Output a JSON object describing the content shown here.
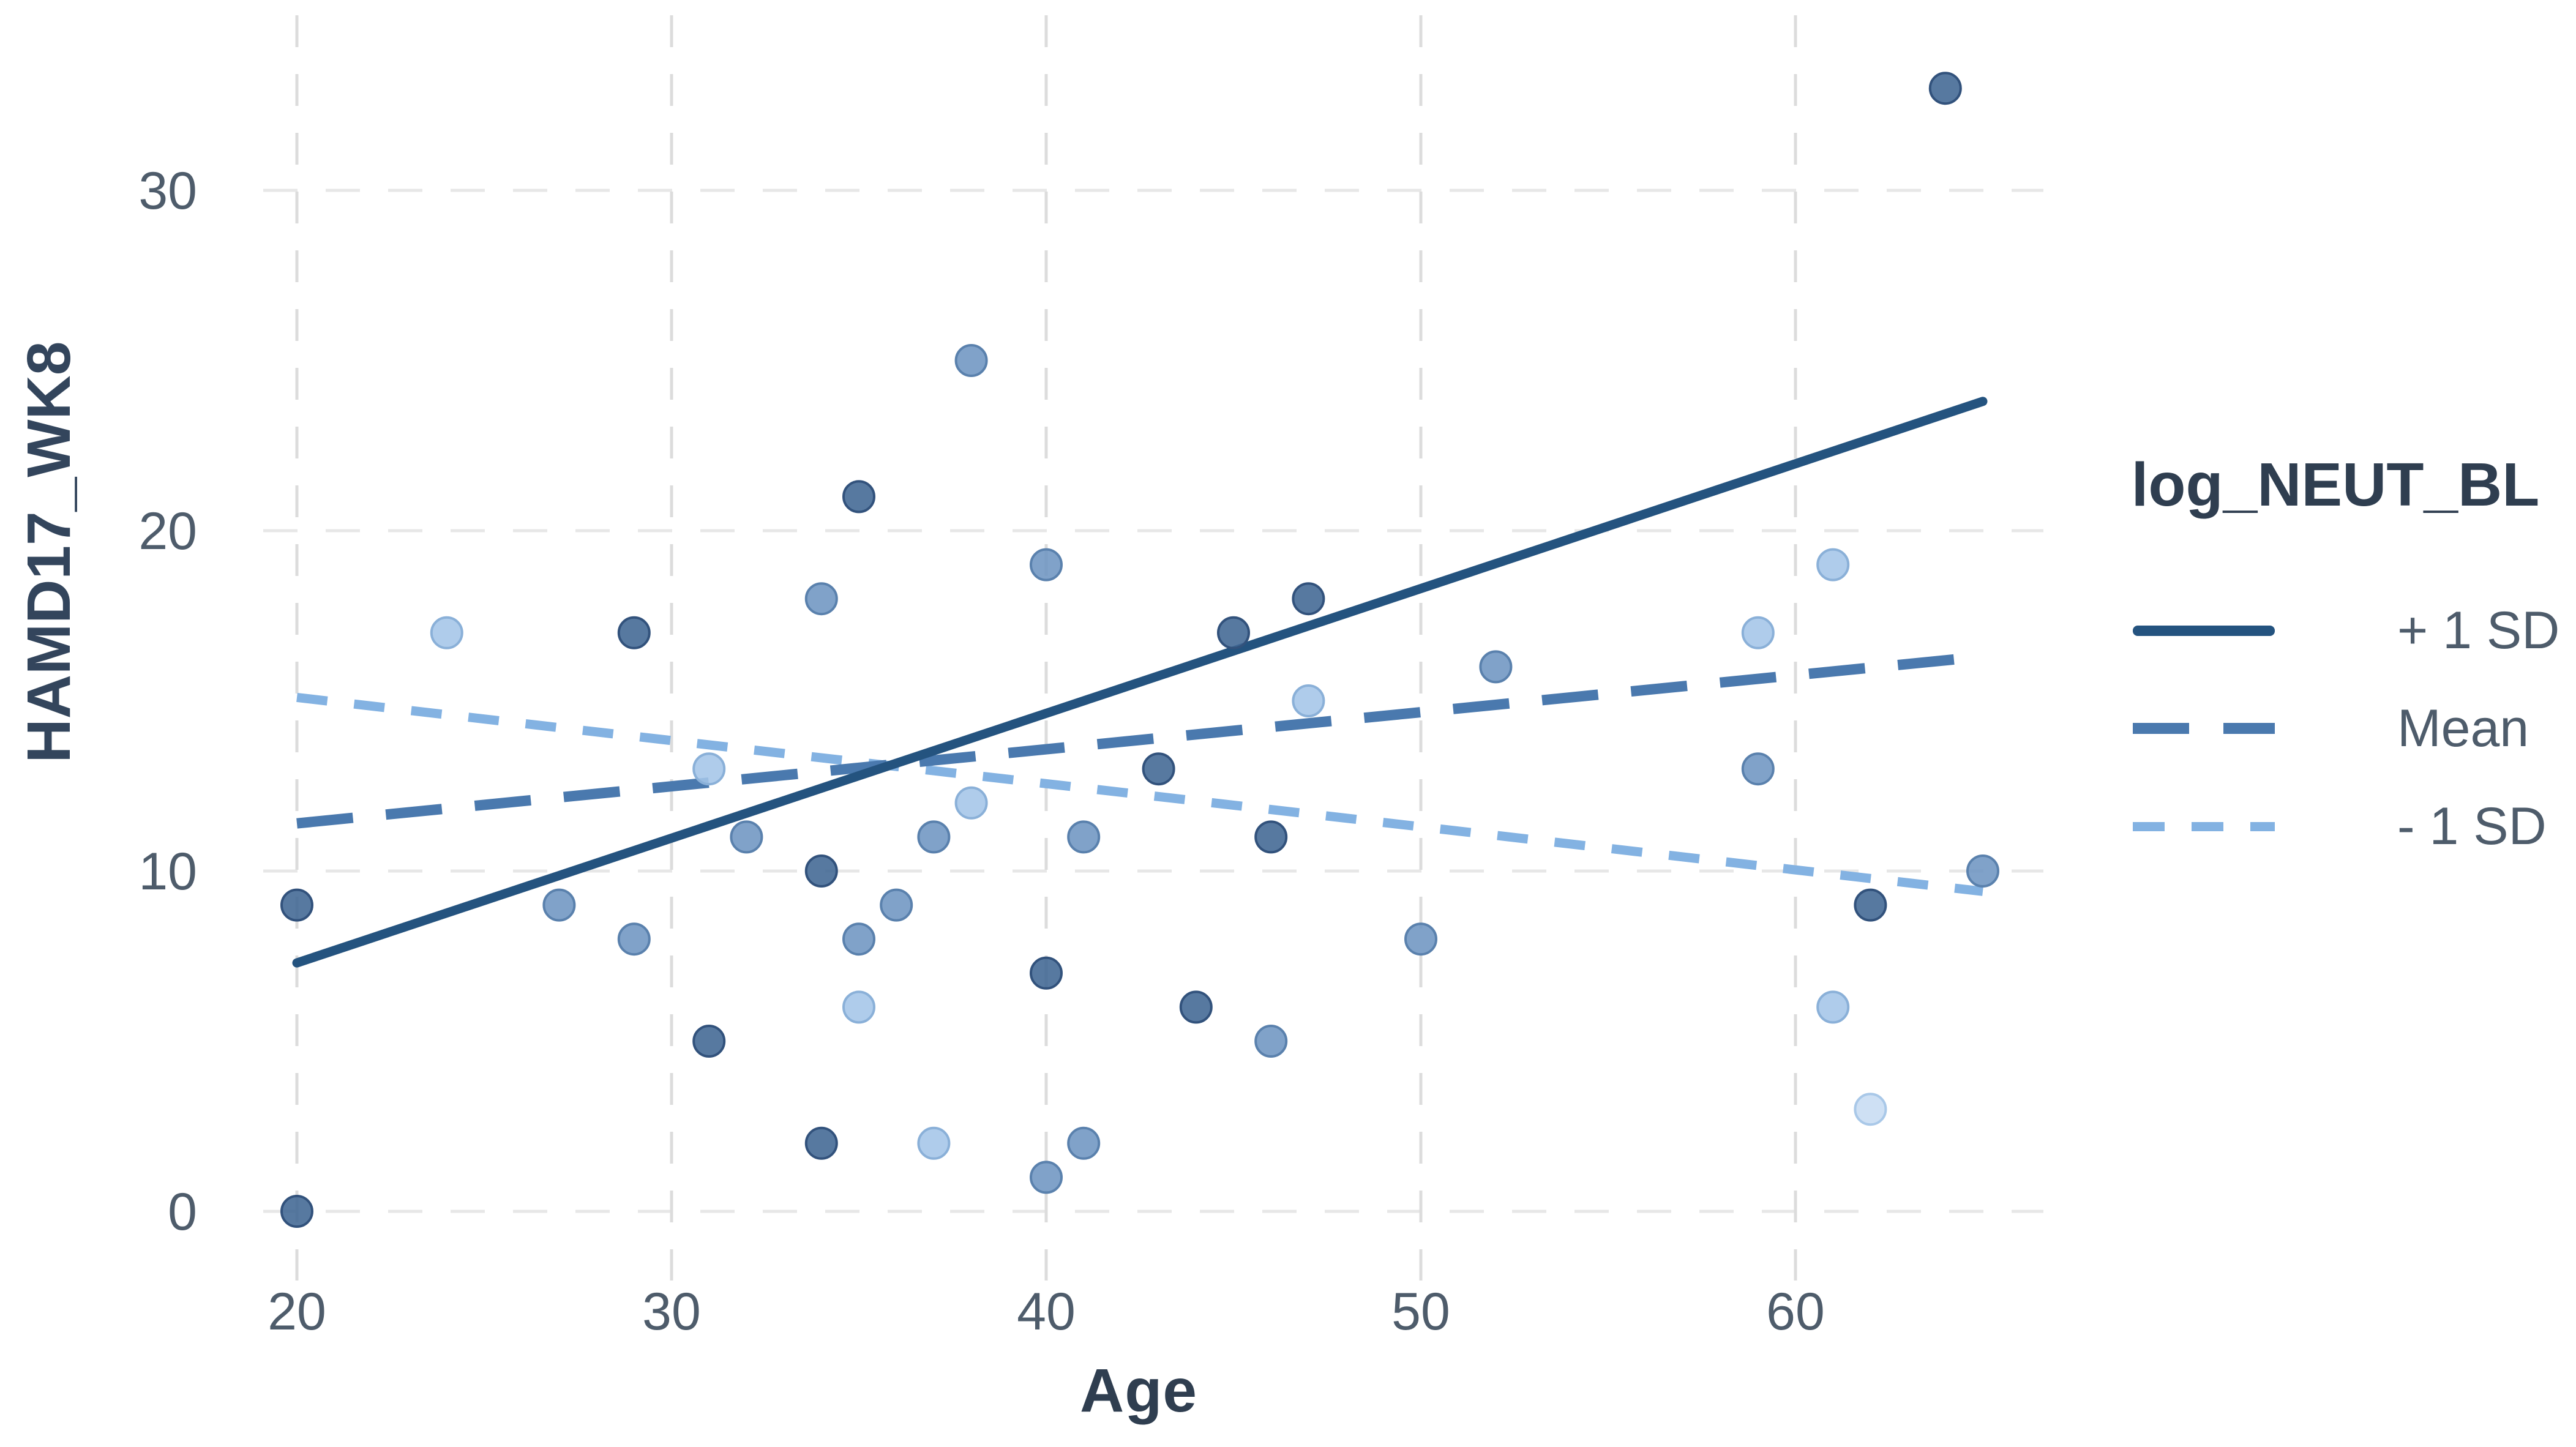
{
  "chart_data": {
    "type": "scatter",
    "title": "",
    "xlabel": "Age",
    "ylabel": "HAMD17_WK8",
    "x_ticks": [
      20,
      30,
      40,
      50,
      60
    ],
    "y_ticks": [
      0,
      10,
      20,
      30
    ],
    "xlim": [
      19,
      66.5
    ],
    "ylim": [
      -2,
      35
    ],
    "grid": "dashed light gray, on",
    "legend": {
      "title": "log_NEUT_BL",
      "position": "right",
      "entries": [
        {
          "label": "+ 1 SD",
          "style": "solid",
          "color": "#24537f"
        },
        {
          "label": "Mean",
          "style": "dashed",
          "color": "#4a79ae"
        },
        {
          "label": "- 1 SD",
          "style": "dotted",
          "color": "#83b2e2"
        }
      ]
    },
    "lines": [
      {
        "series": "+ 1 SD",
        "style": "solid",
        "color": "#24537f",
        "x1": 20,
        "y1": 7.3,
        "x2": 65,
        "y2": 23.8
      },
      {
        "series": "Mean",
        "style": "dashed",
        "color": "#4a79ae",
        "x1": 20,
        "y1": 11.4,
        "x2": 65,
        "y2": 16.3
      },
      {
        "series": "- 1 SD",
        "style": "dotted",
        "color": "#83b2e2",
        "x1": 20,
        "y1": 15.1,
        "x2": 65,
        "y2": 9.4
      }
    ],
    "points": [
      {
        "age": 20,
        "value": 0,
        "shade": "dark"
      },
      {
        "age": 20,
        "value": 9,
        "shade": "dark"
      },
      {
        "age": 24,
        "value": 17,
        "shade": "light"
      },
      {
        "age": 27,
        "value": 9,
        "shade": "medium"
      },
      {
        "age": 29,
        "value": 17,
        "shade": "dark"
      },
      {
        "age": 29,
        "value": 8,
        "shade": "medium"
      },
      {
        "age": 31,
        "value": 13,
        "shade": "light"
      },
      {
        "age": 31,
        "value": 5,
        "shade": "dark"
      },
      {
        "age": 32,
        "value": 11,
        "shade": "medium"
      },
      {
        "age": 34,
        "value": 18,
        "shade": "medium"
      },
      {
        "age": 34,
        "value": 10,
        "shade": "dark"
      },
      {
        "age": 34,
        "value": 2,
        "shade": "dark"
      },
      {
        "age": 35,
        "value": 21,
        "shade": "dark"
      },
      {
        "age": 35,
        "value": 8,
        "shade": "medium"
      },
      {
        "age": 35,
        "value": 6,
        "shade": "light"
      },
      {
        "age": 36,
        "value": 9,
        "shade": "medium"
      },
      {
        "age": 37,
        "value": 11,
        "shade": "medium"
      },
      {
        "age": 37,
        "value": 2,
        "shade": "light"
      },
      {
        "age": 38,
        "value": 25,
        "shade": "medium"
      },
      {
        "age": 38,
        "value": 12,
        "shade": "light"
      },
      {
        "age": 40,
        "value": 19,
        "shade": "medium"
      },
      {
        "age": 40,
        "value": 7,
        "shade": "dark"
      },
      {
        "age": 40,
        "value": 1,
        "shade": "medium"
      },
      {
        "age": 41,
        "value": 11,
        "shade": "medium"
      },
      {
        "age": 41,
        "value": 2,
        "shade": "medium"
      },
      {
        "age": 43,
        "value": 13,
        "shade": "dark"
      },
      {
        "age": 44,
        "value": 6,
        "shade": "dark"
      },
      {
        "age": 45,
        "value": 17,
        "shade": "dark"
      },
      {
        "age": 46,
        "value": 11,
        "shade": "dark"
      },
      {
        "age": 46,
        "value": 5,
        "shade": "medium"
      },
      {
        "age": 47,
        "value": 18,
        "shade": "dark"
      },
      {
        "age": 47,
        "value": 15,
        "shade": "light"
      },
      {
        "age": 50,
        "value": 8,
        "shade": "medium"
      },
      {
        "age": 52,
        "value": 16,
        "shade": "medium"
      },
      {
        "age": 59,
        "value": 17,
        "shade": "light"
      },
      {
        "age": 59,
        "value": 13,
        "shade": "medium"
      },
      {
        "age": 61,
        "value": 19,
        "shade": "light"
      },
      {
        "age": 61,
        "value": 6,
        "shade": "light"
      },
      {
        "age": 62,
        "value": 9,
        "shade": "dark"
      },
      {
        "age": 62,
        "value": 3,
        "shade": "xlight"
      },
      {
        "age": 64,
        "value": 33,
        "shade": "dark"
      },
      {
        "age": 65,
        "value": 10,
        "shade": "medium"
      }
    ],
    "point_colors": {
      "dark": {
        "fill": "#406793",
        "stroke": "#32527c"
      },
      "medium": {
        "fill": "#6e95c1",
        "stroke": "#5a81ad"
      },
      "light": {
        "fill": "#a4c5e8",
        "stroke": "#8ab0d8"
      },
      "xlight": {
        "fill": "#c7dcf2",
        "stroke": "#a9c8e8"
      }
    },
    "colors": {
      "grid_horizontal": "#e7e7e7",
      "grid_vertical": "#dcdcdc",
      "tick_label": "#4e5c6b",
      "axis_title": "#2f3e50",
      "background": "#ffffff"
    }
  }
}
